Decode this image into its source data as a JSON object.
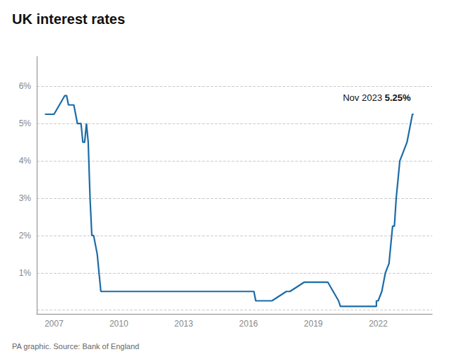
{
  "chart_data": {
    "type": "line",
    "title": "UK interest rates",
    "source": "PA graphic. Source: Bank of England",
    "annotation": [
      "Nov 2023 ",
      "5.25%"
    ],
    "color": "#1B6CA8",
    "marker": "circle",
    "grid": "y",
    "xlim": [
      2006.2,
      2024.5
    ],
    "xticks": [
      2007,
      2010,
      2013,
      2016,
      2019,
      2022
    ],
    "ylim": [
      -0.1,
      6.8
    ],
    "yticks": [
      {
        "value": 0,
        "label": null
      },
      {
        "value": 1,
        "label": "1%"
      },
      {
        "value": 2,
        "label": "2%"
      },
      {
        "value": 3,
        "label": "3%"
      },
      {
        "value": 4,
        "label": "4%"
      },
      {
        "value": 5,
        "label": "5%"
      },
      {
        "value": 6,
        "label": "6%"
      }
    ],
    "x": [
      2006.58,
      2007.0,
      2007.25,
      2007.5,
      2007.583,
      2007.667,
      2007.917,
      2008.0,
      2008.083,
      2008.25,
      2008.333,
      2008.417,
      2008.5,
      2008.583,
      2008.667,
      2008.75,
      2008.833,
      2009.0,
      2009.083,
      2009.167,
      2009.25,
      2016.25,
      2016.333,
      2016.583,
      2017.083,
      2017.75,
      2017.917,
      2018.583,
      2018.667,
      2018.75,
      2019.667,
      2020.167,
      2020.25,
      2020.333,
      2021.917,
      2021.917,
      2022.0,
      2022.167,
      2022.333,
      2022.5,
      2022.583,
      2022.667,
      2022.75,
      2022.833,
      2022.917,
      2023.0,
      2023.167,
      2023.333,
      2023.417,
      2023.5,
      2023.583,
      2023.833
    ],
    "values": [
      5.25,
      5.25,
      5.5,
      5.75,
      5.75,
      5.5,
      5.5,
      5.25,
      5.0,
      5.0,
      4.5,
      4.5,
      5.0,
      4.5,
      3.0,
      2.0,
      2.0,
      1.5,
      1.0,
      0.5,
      0.5,
      0.5,
      0.25,
      0.25,
      0.25,
      0.5,
      0.5,
      0.75,
      0.75,
      0.75,
      0.75,
      0.25,
      0.1,
      0.1,
      0.1,
      0.25,
      0.25,
      0.5,
      1.0,
      1.25,
      1.75,
      2.25,
      2.25,
      3.0,
      3.5,
      4.0,
      4.25,
      4.5,
      4.75,
      5.0,
      5.25,
      5.25
    ]
  }
}
